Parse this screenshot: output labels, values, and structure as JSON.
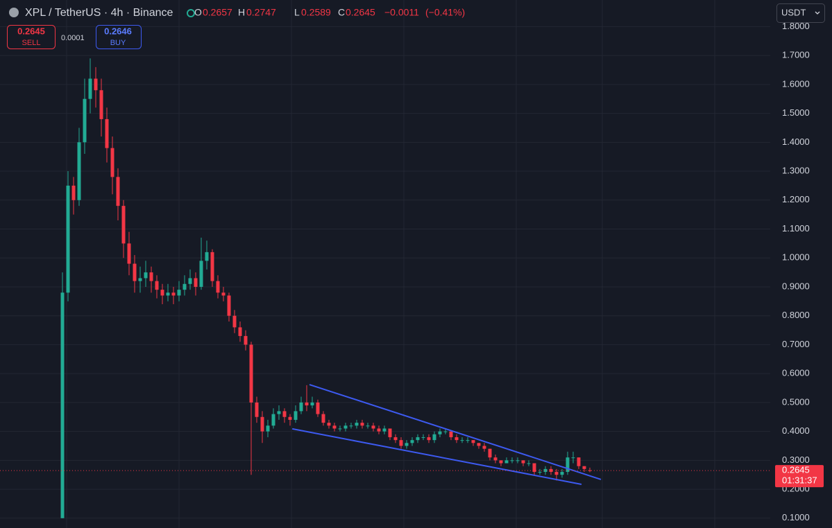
{
  "chart_data": {
    "type": "candlestick",
    "symbol_title": "XPL / TetherUS · 4h · Binance",
    "ohlc_labels": [
      "O",
      "H",
      "L",
      "C"
    ],
    "change": "−0.0011",
    "change_pct": "(−0.41%)",
    "sell_price": {
      "value": 0.2645,
      "label": "0.2645"
    },
    "sell_label": "SELL",
    "spread": {
      "value": 0.0001,
      "label": "0.0001"
    },
    "buy_price": {
      "value": 0.2646,
      "label": "0.2646"
    },
    "buy_label": "BUY",
    "currency": "USDT",
    "countdown": "01:31:37",
    "up_color": "#22ab94",
    "down_color": "#f23645",
    "trendline_color": "#3d5af1",
    "grid": true,
    "ylim": [
      0.066,
      1.892
    ],
    "yticks": [
      {
        "value": 0.1,
        "label": "0.1000"
      },
      {
        "value": 0.2,
        "label": "0.2000"
      },
      {
        "value": 0.3,
        "label": "0.3000"
      },
      {
        "value": 0.4,
        "label": "0.4000"
      },
      {
        "value": 0.5,
        "label": "0.5000"
      },
      {
        "value": 0.6,
        "label": "0.6000"
      },
      {
        "value": 0.7,
        "label": "0.7000"
      },
      {
        "value": 0.8,
        "label": "0.8000"
      },
      {
        "value": 0.9,
        "label": "0.9000"
      },
      {
        "value": 1.0,
        "label": "1.0000"
      },
      {
        "value": 1.1,
        "label": "1.1000"
      },
      {
        "value": 1.2,
        "label": "1.2000"
      },
      {
        "value": 1.3,
        "label": "1.3000"
      },
      {
        "value": 1.4,
        "label": "1.4000"
      },
      {
        "value": 1.5,
        "label": "1.5000"
      },
      {
        "value": 1.6,
        "label": "1.6000"
      },
      {
        "value": 1.7,
        "label": "1.7000"
      },
      {
        "value": 1.8,
        "label": "1.8000"
      }
    ],
    "trendlines": [
      {
        "from": [
          44.5,
          0.562
        ],
        "to": [
          97,
          0.234
        ]
      },
      {
        "from": [
          41.4,
          0.409
        ],
        "to": [
          93.5,
          0.217
        ]
      }
    ],
    "candles": [
      [
        0.1,
        0.95,
        0.1,
        0.88
      ],
      [
        0.88,
        1.3,
        0.85,
        1.25
      ],
      [
        1.25,
        1.28,
        1.15,
        1.2
      ],
      [
        1.2,
        1.45,
        1.18,
        1.4
      ],
      [
        1.4,
        1.62,
        1.36,
        1.55
      ],
      [
        1.55,
        1.69,
        1.5,
        1.62
      ],
      [
        1.62,
        1.66,
        1.52,
        1.58
      ],
      [
        1.58,
        1.62,
        1.42,
        1.48
      ],
      [
        1.48,
        1.52,
        1.33,
        1.38
      ],
      [
        1.38,
        1.42,
        1.22,
        1.28
      ],
      [
        1.28,
        1.31,
        1.13,
        1.18
      ],
      [
        1.18,
        1.2,
        1.0,
        1.05
      ],
      [
        1.05,
        1.09,
        0.94,
        0.98
      ],
      [
        0.98,
        1.01,
        0.88,
        0.92
      ],
      [
        0.92,
        0.97,
        0.88,
        0.93
      ],
      [
        0.93,
        0.99,
        0.9,
        0.95
      ],
      [
        0.95,
        0.97,
        0.88,
        0.92
      ],
      [
        0.92,
        0.94,
        0.86,
        0.89
      ],
      [
        0.89,
        0.91,
        0.84,
        0.87
      ],
      [
        0.87,
        0.91,
        0.85,
        0.88
      ],
      [
        0.88,
        0.9,
        0.84,
        0.87
      ],
      [
        0.87,
        0.92,
        0.85,
        0.89
      ],
      [
        0.89,
        0.94,
        0.87,
        0.91
      ],
      [
        0.91,
        0.96,
        0.89,
        0.93
      ],
      [
        0.93,
        0.95,
        0.87,
        0.9
      ],
      [
        0.9,
        1.07,
        0.89,
        0.99
      ],
      [
        0.99,
        1.06,
        0.96,
        1.02
      ],
      [
        1.02,
        1.03,
        0.9,
        0.92
      ],
      [
        0.92,
        0.94,
        0.86,
        0.88
      ],
      [
        0.88,
        0.9,
        0.85,
        0.87
      ],
      [
        0.87,
        0.88,
        0.78,
        0.8
      ],
      [
        0.8,
        0.82,
        0.74,
        0.76
      ],
      [
        0.76,
        0.78,
        0.71,
        0.73
      ],
      [
        0.73,
        0.75,
        0.68,
        0.7
      ],
      [
        0.7,
        0.71,
        0.25,
        0.5
      ],
      [
        0.5,
        0.52,
        0.43,
        0.45
      ],
      [
        0.45,
        0.47,
        0.36,
        0.4
      ],
      [
        0.4,
        0.44,
        0.38,
        0.42
      ],
      [
        0.42,
        0.48,
        0.41,
        0.46
      ],
      [
        0.46,
        0.49,
        0.44,
        0.47
      ],
      [
        0.47,
        0.48,
        0.43,
        0.45
      ],
      [
        0.45,
        0.46,
        0.42,
        0.44
      ],
      [
        0.44,
        0.49,
        0.43,
        0.47
      ],
      [
        0.47,
        0.52,
        0.46,
        0.5
      ],
      [
        0.5,
        0.56,
        0.47,
        0.49
      ],
      [
        0.49,
        0.52,
        0.48,
        0.5
      ],
      [
        0.5,
        0.51,
        0.45,
        0.46
      ],
      [
        0.46,
        0.47,
        0.42,
        0.43
      ],
      [
        0.43,
        0.44,
        0.41,
        0.42
      ],
      [
        0.42,
        0.43,
        0.4,
        0.41
      ],
      [
        0.41,
        0.42,
        0.4,
        0.41
      ],
      [
        0.41,
        0.43,
        0.4,
        0.42
      ],
      [
        0.42,
        0.43,
        0.41,
        0.42
      ],
      [
        0.42,
        0.44,
        0.41,
        0.43
      ],
      [
        0.43,
        0.44,
        0.41,
        0.42
      ],
      [
        0.42,
        0.43,
        0.41,
        0.42
      ],
      [
        0.42,
        0.43,
        0.4,
        0.41
      ],
      [
        0.41,
        0.42,
        0.39,
        0.4
      ],
      [
        0.4,
        0.42,
        0.39,
        0.41
      ],
      [
        0.41,
        0.41,
        0.37,
        0.38
      ],
      [
        0.38,
        0.39,
        0.36,
        0.37
      ],
      [
        0.37,
        0.38,
        0.34,
        0.35
      ],
      [
        0.35,
        0.37,
        0.34,
        0.36
      ],
      [
        0.36,
        0.38,
        0.35,
        0.37
      ],
      [
        0.37,
        0.39,
        0.36,
        0.38
      ],
      [
        0.38,
        0.39,
        0.37,
        0.38
      ],
      [
        0.38,
        0.39,
        0.36,
        0.37
      ],
      [
        0.37,
        0.4,
        0.36,
        0.39
      ],
      [
        0.39,
        0.41,
        0.38,
        0.4
      ],
      [
        0.4,
        0.41,
        0.39,
        0.4
      ],
      [
        0.4,
        0.4,
        0.37,
        0.38
      ],
      [
        0.38,
        0.39,
        0.36,
        0.37
      ],
      [
        0.37,
        0.38,
        0.36,
        0.37
      ],
      [
        0.37,
        0.38,
        0.36,
        0.37
      ],
      [
        0.37,
        0.37,
        0.35,
        0.36
      ],
      [
        0.36,
        0.36,
        0.34,
        0.35
      ],
      [
        0.35,
        0.36,
        0.33,
        0.34
      ],
      [
        0.34,
        0.34,
        0.3,
        0.31
      ],
      [
        0.31,
        0.32,
        0.29,
        0.3
      ],
      [
        0.3,
        0.3,
        0.28,
        0.29
      ],
      [
        0.29,
        0.31,
        0.29,
        0.3
      ],
      [
        0.3,
        0.31,
        0.29,
        0.3
      ],
      [
        0.3,
        0.31,
        0.29,
        0.3
      ],
      [
        0.3,
        0.3,
        0.28,
        0.29
      ],
      [
        0.29,
        0.3,
        0.28,
        0.29
      ],
      [
        0.29,
        0.29,
        0.25,
        0.26
      ],
      [
        0.26,
        0.27,
        0.25,
        0.26
      ],
      [
        0.26,
        0.28,
        0.25,
        0.27
      ],
      [
        0.27,
        0.28,
        0.25,
        0.26
      ],
      [
        0.26,
        0.27,
        0.23,
        0.25
      ],
      [
        0.25,
        0.27,
        0.24,
        0.26
      ],
      [
        0.26,
        0.33,
        0.25,
        0.31
      ],
      [
        0.31,
        0.33,
        0.29,
        0.31
      ],
      [
        0.31,
        0.31,
        0.27,
        0.28
      ],
      [
        0.28,
        0.28,
        0.26,
        0.27
      ],
      [
        0.2657,
        0.2747,
        0.2589,
        0.2645
      ]
    ]
  }
}
